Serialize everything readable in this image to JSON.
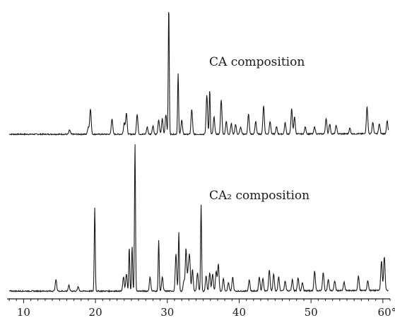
{
  "chart_data": {
    "type": "line",
    "xlim": [
      7.5,
      61
    ],
    "x_ticks": [
      10,
      20,
      30,
      40,
      50,
      60
    ],
    "x_tick_labels": [
      "10",
      "20",
      "30",
      "40",
      "50",
      "60°"
    ],
    "x_minor_step": 1,
    "grid": false,
    "series": [
      {
        "name": "CA composition",
        "baseline": 0,
        "peaks": [
          [
            16.4,
            6
          ],
          [
            19.0,
            10
          ],
          [
            19.3,
            36
          ],
          [
            22.3,
            22
          ],
          [
            24.0,
            16
          ],
          [
            24.3,
            30
          ],
          [
            25.8,
            28
          ],
          [
            27.2,
            10
          ],
          [
            28.0,
            12
          ],
          [
            28.8,
            20
          ],
          [
            29.3,
            22
          ],
          [
            29.8,
            28
          ],
          [
            30.2,
            180
          ],
          [
            31.5,
            85
          ],
          [
            32.0,
            20
          ],
          [
            33.4,
            35
          ],
          [
            35.5,
            55
          ],
          [
            35.9,
            62
          ],
          [
            36.5,
            24
          ],
          [
            37.5,
            48
          ],
          [
            38.2,
            18
          ],
          [
            38.9,
            15
          ],
          [
            39.5,
            14
          ],
          [
            40.2,
            10
          ],
          [
            41.3,
            28
          ],
          [
            42.3,
            18
          ],
          [
            43.4,
            40
          ],
          [
            44.3,
            18
          ],
          [
            45.2,
            10
          ],
          [
            46.4,
            16
          ],
          [
            47.3,
            35
          ],
          [
            47.7,
            24
          ],
          [
            49.2,
            10
          ],
          [
            50.5,
            10
          ],
          [
            52.1,
            22
          ],
          [
            52.6,
            14
          ],
          [
            53.5,
            12
          ],
          [
            55.4,
            8
          ],
          [
            57.8,
            38
          ],
          [
            58.6,
            16
          ],
          [
            59.5,
            14
          ],
          [
            60.6,
            18
          ]
        ]
      },
      {
        "name": "CA₂ composition",
        "baseline": 0,
        "peaks": [
          [
            14.5,
            16
          ],
          [
            16.3,
            8
          ],
          [
            17.6,
            6
          ],
          [
            19.9,
            118
          ],
          [
            23.9,
            20
          ],
          [
            24.3,
            24
          ],
          [
            24.7,
            62
          ],
          [
            25.1,
            64
          ],
          [
            25.5,
            208
          ],
          [
            27.6,
            20
          ],
          [
            28.8,
            72
          ],
          [
            29.3,
            20
          ],
          [
            31.2,
            52
          ],
          [
            31.6,
            84
          ],
          [
            32.3,
            14
          ],
          [
            32.6,
            60
          ],
          [
            32.9,
            28
          ],
          [
            33.1,
            48
          ],
          [
            33.5,
            30
          ],
          [
            34.2,
            26
          ],
          [
            34.7,
            122
          ],
          [
            35.4,
            22
          ],
          [
            35.9,
            26
          ],
          [
            36.3,
            24
          ],
          [
            36.8,
            28
          ],
          [
            37.1,
            38
          ],
          [
            37.8,
            18
          ],
          [
            38.5,
            12
          ],
          [
            39.1,
            20
          ],
          [
            41.4,
            16
          ],
          [
            42.8,
            20
          ],
          [
            43.3,
            18
          ],
          [
            44.2,
            30
          ],
          [
            44.8,
            24
          ],
          [
            45.5,
            20
          ],
          [
            46.4,
            14
          ],
          [
            47.4,
            16
          ],
          [
            48.2,
            18
          ],
          [
            48.8,
            12
          ],
          [
            50.5,
            28
          ],
          [
            51.7,
            26
          ],
          [
            52.4,
            16
          ],
          [
            53.3,
            14
          ],
          [
            54.6,
            12
          ],
          [
            56.6,
            20
          ],
          [
            57.9,
            14
          ],
          [
            59.8,
            42
          ],
          [
            60.2,
            48
          ]
        ]
      }
    ]
  }
}
